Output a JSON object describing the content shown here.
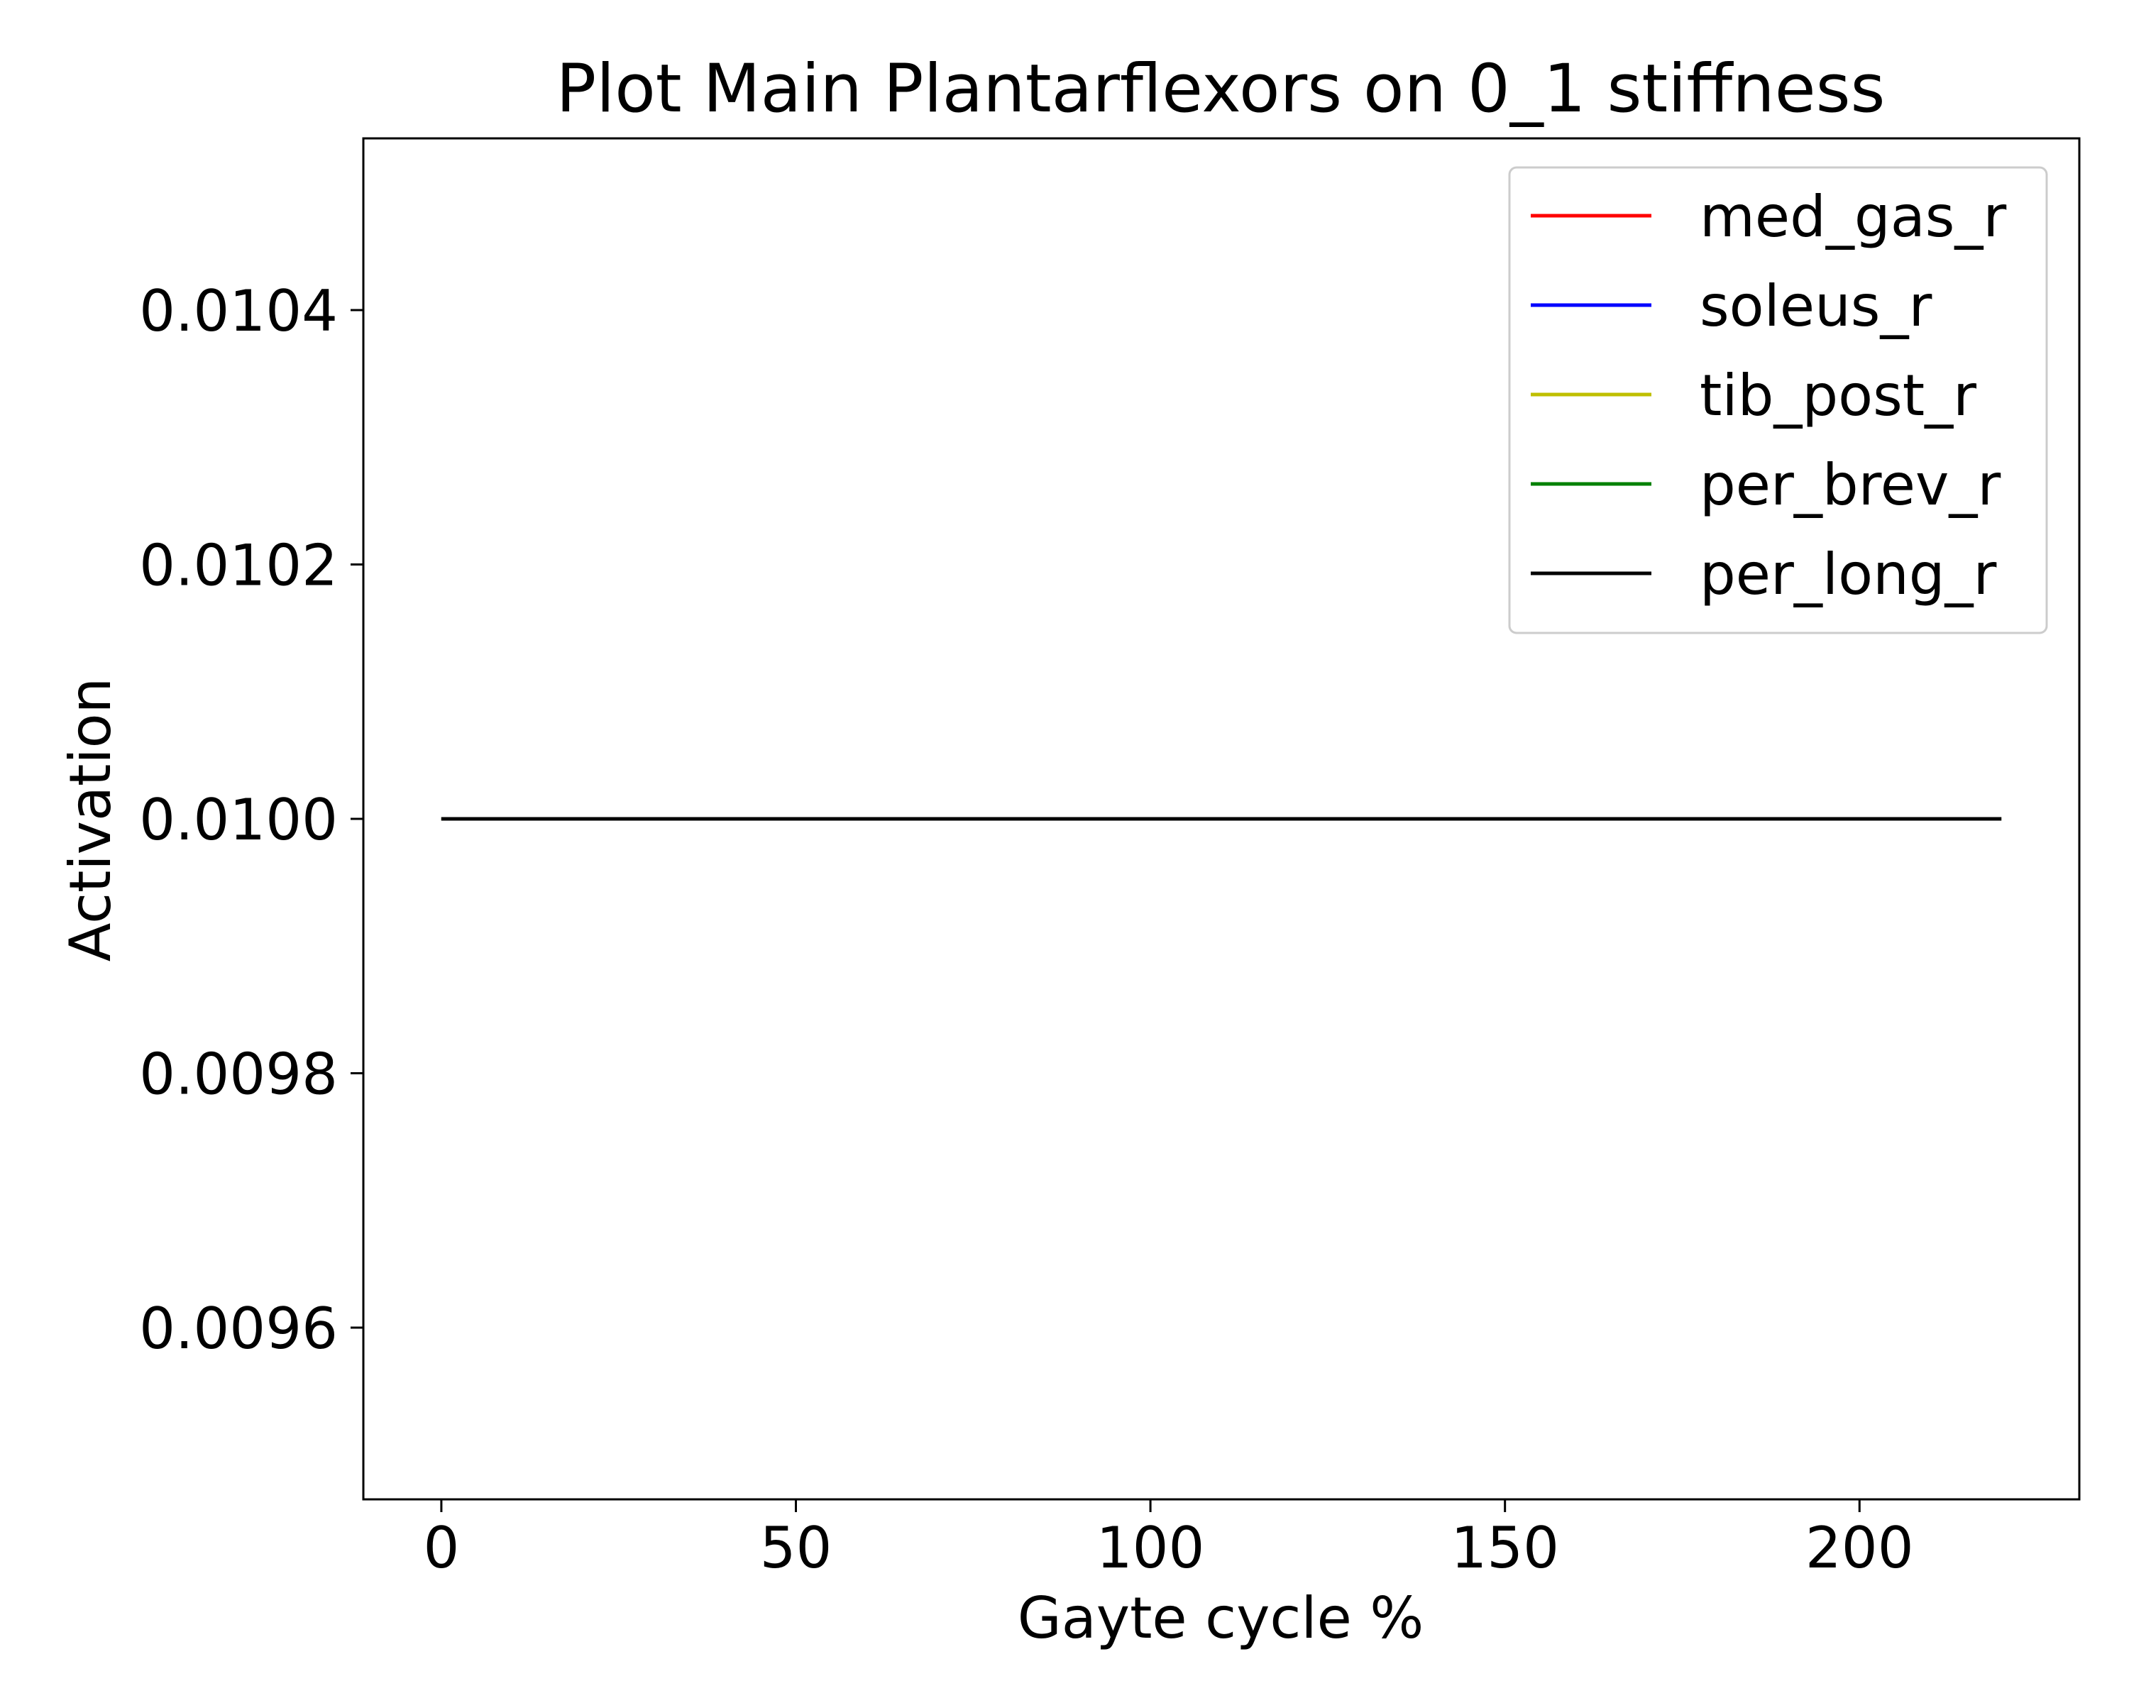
{
  "chart_data": {
    "type": "line",
    "title": "Plot Main Plantarflexors on 0_1 stiffness",
    "xlabel": "Gayte cycle %",
    "ylabel": "Activation",
    "xlim": [
      -11,
      231
    ],
    "ylim": [
      0.009465,
      0.010535
    ],
    "xticks": [
      0,
      50,
      100,
      150,
      200
    ],
    "xtick_labels": [
      "0",
      "50",
      "100",
      "150",
      "200"
    ],
    "yticks": [
      0.0096,
      0.0098,
      0.01,
      0.0102,
      0.0104
    ],
    "ytick_labels": [
      "0.0096",
      "0.0098",
      "0.0100",
      "0.0102",
      "0.0104"
    ],
    "grid": false,
    "legend_position": "top-right",
    "x": [
      0,
      220
    ],
    "series": [
      {
        "name": "med_gas_r",
        "color": "#ff0000",
        "values": [
          0.01,
          0.01
        ]
      },
      {
        "name": "soleus_r",
        "color": "#0000ff",
        "values": [
          0.01,
          0.01
        ]
      },
      {
        "name": "tib_post_r",
        "color": "#bfbf00",
        "values": [
          0.01,
          0.01
        ]
      },
      {
        "name": "per_brev_r",
        "color": "#008000",
        "values": [
          0.01,
          0.01
        ]
      },
      {
        "name": "per_long_r",
        "color": "#000000",
        "values": [
          0.01,
          0.01
        ]
      }
    ]
  }
}
